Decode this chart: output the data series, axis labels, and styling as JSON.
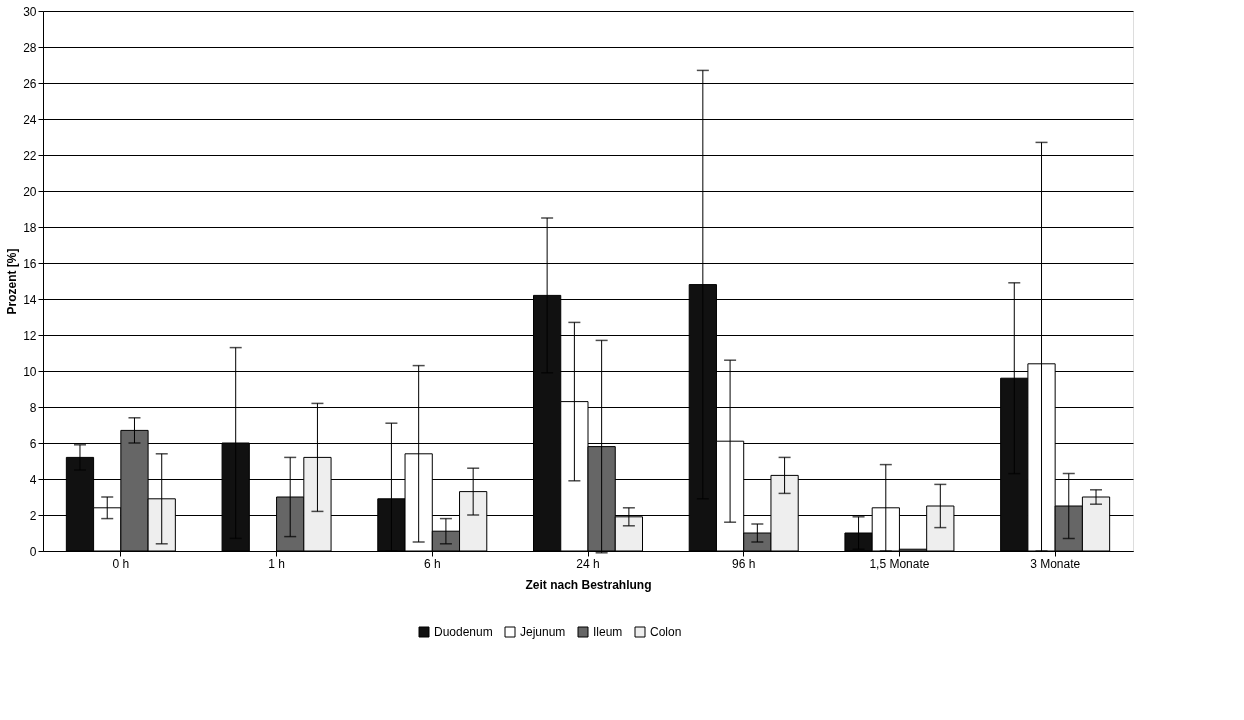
{
  "chart_data": {
    "type": "bar",
    "xlabel": "Zeit nach Bestrahlung",
    "ylabel": "Prozent [%]",
    "categories": [
      "0 h",
      "1 h",
      "6 h",
      "24 h",
      "96 h",
      "1,5 Monate",
      "3 Monate"
    ],
    "series": [
      {
        "name": "Duodenum",
        "color": "#111111",
        "values": [
          5.2,
          6.0,
          2.9,
          14.2,
          14.8,
          1.0,
          9.6
        ],
        "errors": [
          0.7,
          5.3,
          [
            0,
            7.1
          ],
          4.3,
          11.9,
          0.9,
          5.3
        ]
      },
      {
        "name": "Jejunum",
        "color": "#ffffff",
        "values": [
          2.4,
          null,
          5.4,
          8.3,
          6.1,
          2.4,
          10.4
        ],
        "errors": [
          0.6,
          null,
          4.9,
          4.4,
          4.5,
          2.4,
          [
            0,
            22.7
          ]
        ]
      },
      {
        "name": "Ileum",
        "color": "#666666",
        "values": [
          6.7,
          3.0,
          1.1,
          5.8,
          1.0,
          0.1,
          2.5
        ],
        "errors": [
          0.7,
          2.2,
          0.7,
          5.9,
          0.5,
          null,
          1.8
        ]
      },
      {
        "name": "Colon",
        "color": "#eeeeee",
        "values": [
          2.9,
          5.2,
          3.3,
          1.9,
          4.2,
          2.5,
          3.0
        ],
        "errors": [
          2.5,
          3.0,
          1.3,
          0.5,
          1.0,
          1.2,
          0.4
        ]
      }
    ],
    "ylim": [
      0,
      30
    ],
    "yticks": [
      0,
      2,
      4,
      6,
      8,
      10,
      12,
      14,
      16,
      18,
      20,
      22,
      24,
      26,
      28,
      30
    ],
    "grid": "y",
    "legend": "bottom"
  }
}
